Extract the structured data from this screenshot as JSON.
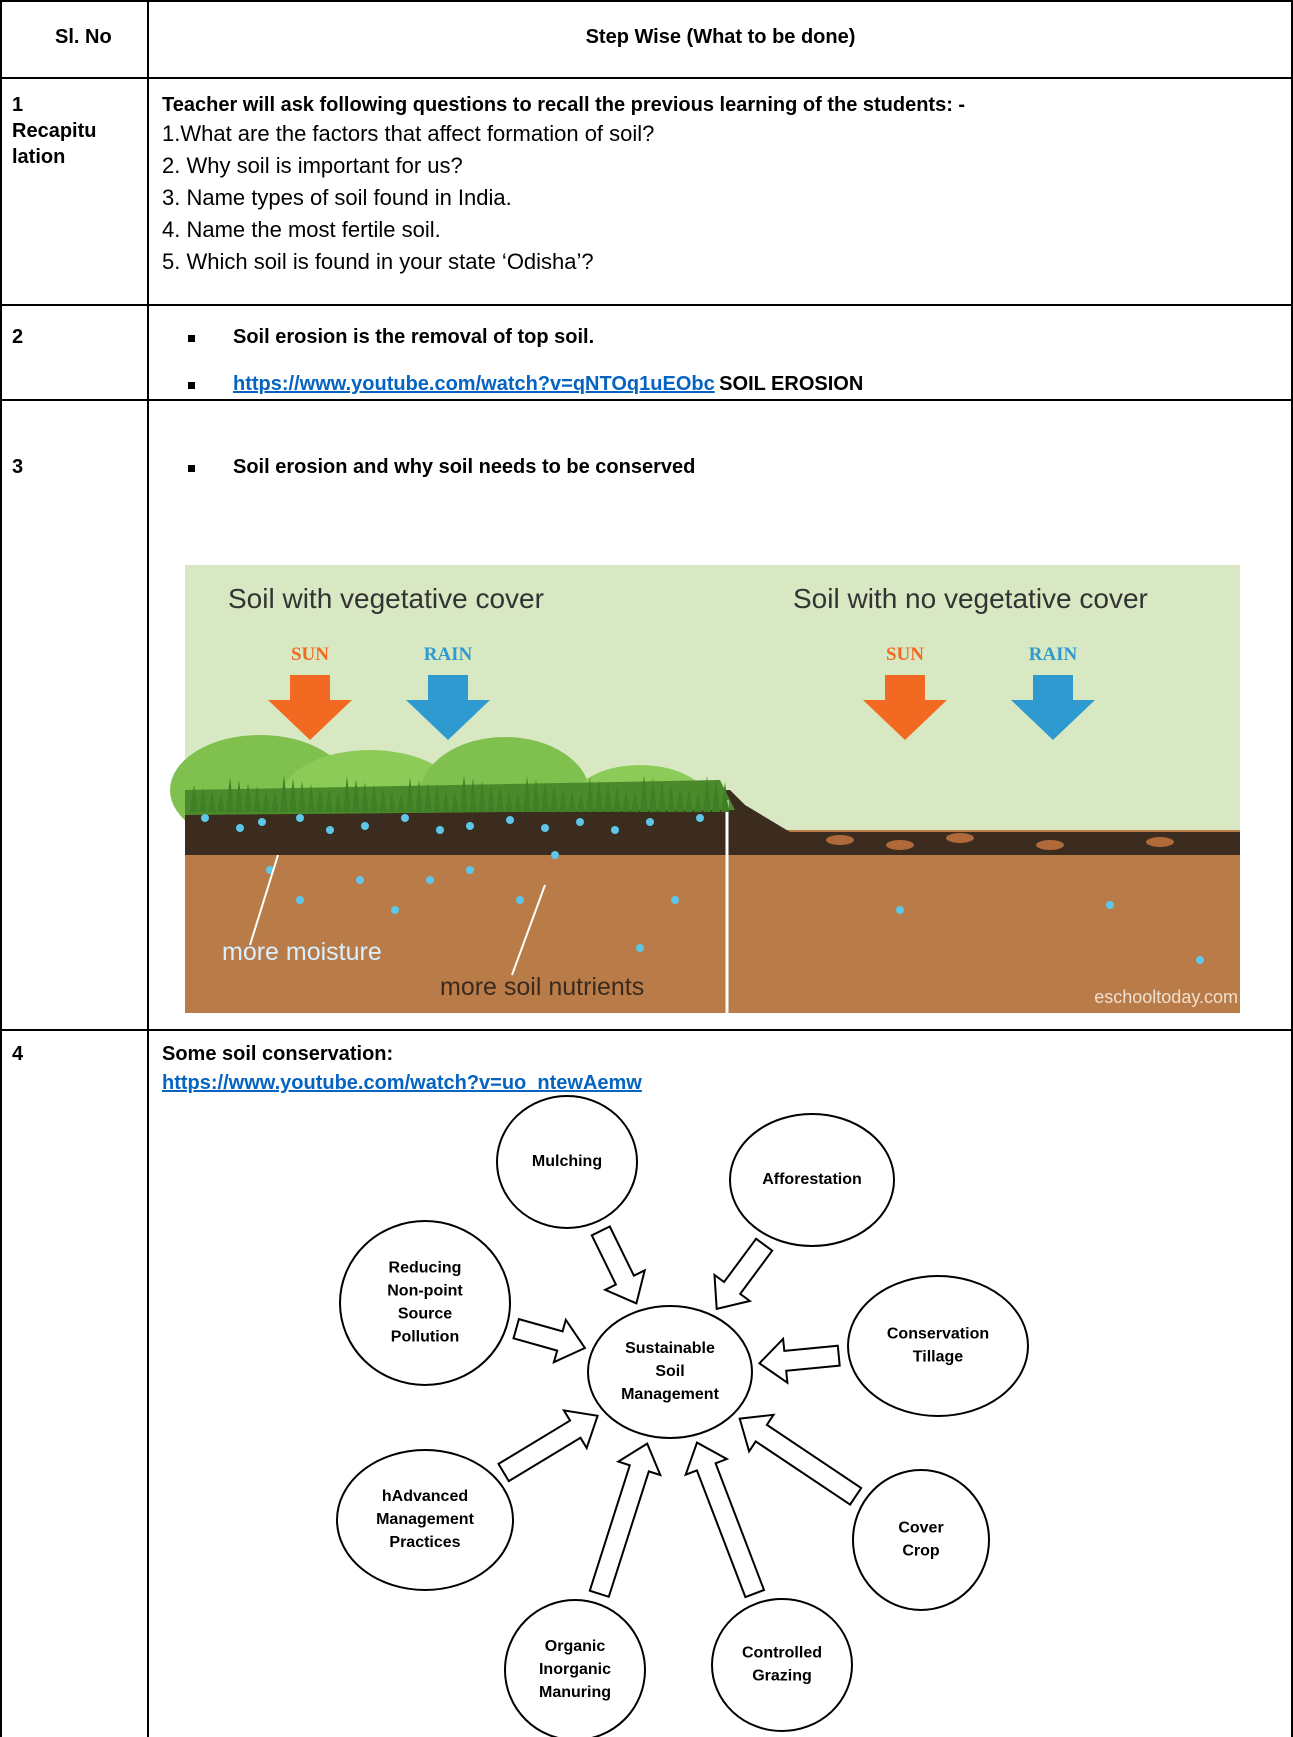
{
  "table": {
    "header": {
      "number": "Sl. No",
      "step": "Step Wise (What to be done)"
    },
    "rows": [
      {
        "number": "1",
        "label_lines": [
          "Recapitu",
          "lation"
        ],
        "heading": "Teacher will ask following questions to recall the previous learning of the students: -",
        "questions": [
          "1.What are the factors that affect formation of soil?",
          "2. Why soil is important for us?",
          "3. Name types of soil found in India.",
          "4. Name the most fertile soil.",
          "5. Which soil is found in your state ‘Odisha’?"
        ]
      },
      {
        "number": "2",
        "bullets": [
          {
            "text": "Soil erosion is the removal of top soil."
          },
          {
            "link": "https://www.youtube.com/watch?v=qNTOq1uEObc",
            "text": "SOIL EROSION"
          }
        ]
      },
      {
        "number": "3",
        "bullets": [
          {
            "text": "Soil erosion and why soil needs to be conserved"
          }
        ],
        "illustration": {
          "left_title": "Soil with vegetative cover",
          "right_title": "Soil with no vegetative cover",
          "left_arrows": [
            "SUN",
            "RAIN"
          ],
          "right_arrows": [
            "SUN",
            "RAIN"
          ],
          "labels": [
            "more moisture",
            "more soil nutrients"
          ],
          "credit": "eschooltoday.com"
        }
      },
      {
        "number": "4",
        "heading": "Some soil conservation:",
        "link": "https://www.youtube.com/watch?v=uo_ntewAemw",
        "diagram": {
          "center": [
            "Sustainable",
            "Soil",
            "Management"
          ],
          "nodes": [
            {
              "lines": [
                "Mulching"
              ]
            },
            {
              "lines": [
                "Afforestation"
              ]
            },
            {
              "lines": [
                "Conservation",
                "Tillage"
              ]
            },
            {
              "lines": [
                "Cover",
                "Crop"
              ]
            },
            {
              "lines": [
                "Controlled",
                "Grazing"
              ]
            },
            {
              "lines": [
                "Organic",
                "Inorganic",
                "Manuring"
              ]
            },
            {
              "lines": [
                "hAdvanced",
                "Management",
                "Practices"
              ]
            },
            {
              "lines": [
                "Reducing",
                "Non-point",
                "Source",
                "Pollution"
              ]
            }
          ]
        }
      }
    ]
  }
}
